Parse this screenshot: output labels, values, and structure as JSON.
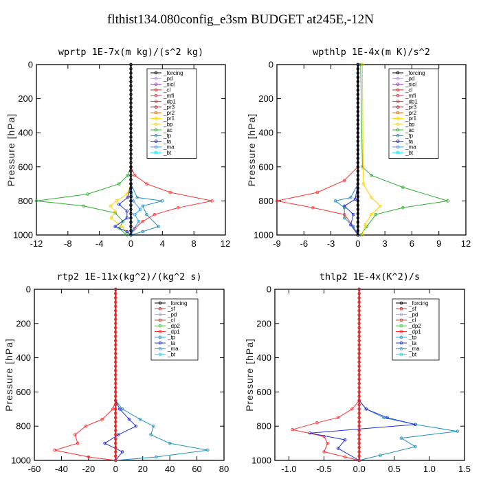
{
  "title": "flthist134.080config_e3sm  BUDGET at245E,-12N",
  "colors": {
    "_forcing": "#000000",
    "_pd": "#b0a0e0",
    "_sicl": "#8e44ad",
    "_cl": "#c0392b",
    "_mfl": "#e0304a",
    "_dp1": "#ff3030",
    "_pr3": "#c02020",
    "_pr2": "#e07020",
    "_pr1": "#ffd000",
    "_bp": "#f0d040",
    "_ac": "#30b030",
    "_tp": "#2090c0",
    "_ta": "#2030d0",
    "_ma": "#30a0ff",
    "_bt": "#00e0ff",
    "_sf": "#e02020",
    "_dp2": "#40c040"
  },
  "chart_data": [
    {
      "type": "line",
      "title": "wprtp  1E-7x(m kg)/(s^2 kg)",
      "ylabel": "Pressure [hPa]",
      "xlim": [
        -12,
        12
      ],
      "ylim": [
        1000,
        0
      ],
      "xticks": [
        -12,
        -8,
        -4,
        0,
        4,
        8,
        12
      ],
      "yticks": [
        0,
        200,
        400,
        600,
        800,
        1000
      ],
      "legend": [
        "_forcing",
        "_pd",
        "_sicl",
        "_cl",
        "_mfl",
        "_dp1",
        "_pr3",
        "_pr2",
        "_pr1",
        "_bp",
        "_ac",
        "_tp",
        "_ta",
        "_ma",
        "_bt"
      ],
      "series": [
        {
          "name": "_ac",
          "x": [
            0,
            0,
            -0.4,
            -1.5,
            -5.5,
            -12,
            -6,
            -2,
            -1,
            -1.5,
            -0.5
          ],
          "y": [
            0,
            600,
            650,
            700,
            760,
            800,
            830,
            870,
            920,
            960,
            1000
          ]
        },
        {
          "name": "_dp1",
          "x": [
            0,
            0,
            0.5,
            2,
            5,
            10.3,
            6,
            3,
            1.5,
            0.5,
            0
          ],
          "y": [
            0,
            600,
            650,
            700,
            750,
            800,
            840,
            880,
            920,
            960,
            1000
          ]
        },
        {
          "name": "_pr1",
          "x": [
            0,
            0,
            -0.5,
            -1.8,
            -2.6,
            -2,
            -2.5,
            -1.2,
            0
          ],
          "y": [
            0,
            700,
            760,
            800,
            830,
            860,
            900,
            950,
            1000
          ]
        },
        {
          "name": "_tp",
          "x": [
            0,
            0,
            0.8,
            4,
            1.5,
            2,
            3.5,
            1.5,
            0
          ],
          "y": [
            0,
            700,
            780,
            800,
            830,
            880,
            950,
            980,
            1000
          ]
        },
        {
          "name": "_ta",
          "x": [
            0,
            0,
            -0.4,
            -1.5,
            -0.5,
            -0.5,
            -2,
            -0.5,
            0
          ],
          "y": [
            0,
            700,
            780,
            820,
            860,
            900,
            950,
            980,
            1000
          ]
        },
        {
          "name": "_ma",
          "x": [
            0,
            0,
            0.3,
            1.2,
            0.5,
            1,
            0.3,
            0
          ],
          "y": [
            0,
            700,
            800,
            850,
            880,
            920,
            970,
            1000
          ]
        },
        {
          "name": "_forcing",
          "x": [
            0,
            0
          ],
          "y": [
            0,
            1000
          ]
        }
      ]
    },
    {
      "type": "line",
      "title": "wpthlp  1E-4x(m K)/s^2",
      "ylabel": "Pressure [hPa]",
      "xlim": [
        -9,
        12
      ],
      "ylim": [
        1000,
        0
      ],
      "xticks": [
        -9,
        -6,
        -3,
        0,
        3,
        6,
        9,
        12
      ],
      "yticks": [
        0,
        200,
        400,
        600,
        800,
        1000
      ],
      "legend": [
        "_forcing",
        "_pd",
        "_sicl",
        "_cl",
        "_mfl",
        "_dp1",
        "_pr3",
        "_pr2",
        "_pr1",
        "_bp",
        "_ac",
        "_tp",
        "_ta",
        "_ma",
        "_bt"
      ],
      "series": [
        {
          "name": "_ac",
          "x": [
            0.3,
            0.5,
            1.5,
            5,
            10,
            5,
            2,
            1,
            0.3
          ],
          "y": [
            0,
            600,
            650,
            720,
            800,
            840,
            880,
            950,
            1000
          ]
        },
        {
          "name": "_dp1",
          "x": [
            0,
            0,
            -1.5,
            -4.5,
            -9,
            -5,
            -1.5,
            -0.5,
            0
          ],
          "y": [
            0,
            600,
            680,
            750,
            800,
            840,
            880,
            950,
            1000
          ]
        },
        {
          "name": "_pr1",
          "x": [
            0.5,
            0.6,
            1.5,
            2.5,
            1.5,
            0.8,
            0.5
          ],
          "y": [
            0,
            700,
            780,
            830,
            880,
            940,
            1000
          ]
        },
        {
          "name": "_tp",
          "x": [
            0,
            0,
            -0.8,
            -2.5,
            -1.5,
            -1.5,
            -0.5,
            0
          ],
          "y": [
            0,
            700,
            780,
            800,
            840,
            900,
            950,
            1000
          ]
        },
        {
          "name": "_ta",
          "x": [
            0,
            0,
            -0.3,
            -1.5,
            -0.5,
            -0.8,
            0
          ],
          "y": [
            0,
            700,
            790,
            830,
            880,
            940,
            1000
          ]
        },
        {
          "name": "_pd",
          "x": [
            0,
            0
          ],
          "y": [
            0,
            1000
          ]
        },
        {
          "name": "_forcing",
          "x": [
            0,
            0
          ],
          "y": [
            0,
            1000
          ]
        }
      ]
    },
    {
      "type": "line",
      "title": "rtp2  1E-11x(kg^2)/(kg^2 s)",
      "ylabel": "Pressure [hPa]",
      "xlim": [
        -60,
        80
      ],
      "ylim": [
        1000,
        0
      ],
      "xticks": [
        -60,
        -40,
        -20,
        0,
        20,
        40,
        60,
        80
      ],
      "yticks": [
        0,
        200,
        400,
        600,
        800,
        1000
      ],
      "legend": [
        "_forcing",
        "_sf",
        "_pd",
        "_cl",
        "_dp2",
        "_dp1",
        "_tp",
        "_ta",
        "_ma",
        "_bt"
      ],
      "series": [
        {
          "name": "_dp1",
          "x": [
            0,
            0,
            -2,
            -10,
            -22,
            -30,
            -28,
            -45,
            -20,
            0
          ],
          "y": [
            0,
            650,
            700,
            760,
            800,
            850,
            900,
            940,
            980,
            1000
          ]
        },
        {
          "name": "_tp",
          "x": [
            0,
            0,
            5,
            18,
            28,
            26,
            40,
            68,
            30,
            0
          ],
          "y": [
            0,
            650,
            700,
            760,
            800,
            850,
            900,
            940,
            980,
            1000
          ]
        },
        {
          "name": "_ta",
          "x": [
            0,
            0,
            3,
            10,
            15,
            2,
            -8,
            5,
            0
          ],
          "y": [
            0,
            650,
            700,
            760,
            800,
            850,
            900,
            950,
            1000
          ]
        },
        {
          "name": "_sf",
          "x": [
            0,
            0
          ],
          "y": [
            0,
            1000
          ]
        }
      ]
    },
    {
      "type": "line",
      "title": "thlp2  1E-4x(K^2)/s",
      "ylabel": "Pressure [hPa]",
      "xlim": [
        -1.2,
        1.5
      ],
      "ylim": [
        1000,
        0
      ],
      "xticks": [
        -1.0,
        -0.5,
        0.0,
        0.5,
        1.0,
        1.5
      ],
      "yticks": [
        0,
        200,
        400,
        600,
        800,
        1000
      ],
      "legend": [
        "_forcing",
        "_sf",
        "_pd",
        "_cl",
        "_dp2",
        "_dp1",
        "_tp",
        "_ta",
        "_ma",
        "_bt"
      ],
      "series": [
        {
          "name": "_dp1",
          "x": [
            0,
            0,
            -0.1,
            -0.3,
            -0.6,
            -0.95,
            -0.5,
            -0.45,
            -0.5,
            -0.2,
            0
          ],
          "y": [
            0,
            650,
            700,
            750,
            780,
            820,
            860,
            900,
            950,
            980,
            1000
          ]
        },
        {
          "name": "_tp",
          "x": [
            0,
            0,
            0.1,
            0.35,
            0.8,
            1.4,
            0.6,
            0.8,
            0.3,
            0
          ],
          "y": [
            0,
            650,
            700,
            750,
            790,
            830,
            870,
            920,
            970,
            1000
          ]
        },
        {
          "name": "_ta",
          "x": [
            0,
            0,
            0.1,
            0.4,
            0.8,
            -0.7,
            -0.2,
            -0.3,
            0
          ],
          "y": [
            0,
            650,
            700,
            750,
            790,
            840,
            880,
            930,
            1000
          ]
        },
        {
          "name": "_sf",
          "x": [
            0,
            0
          ],
          "y": [
            0,
            1000
          ]
        }
      ]
    }
  ]
}
